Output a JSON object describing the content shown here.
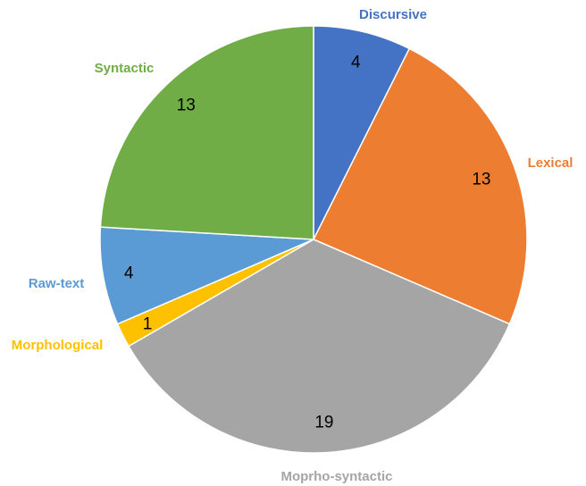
{
  "chart_data": {
    "type": "pie",
    "title": "",
    "slices": [
      {
        "label": "Discursive",
        "value": 4,
        "color": "#4472C4"
      },
      {
        "label": "Lexical",
        "value": 13,
        "color": "#ED7D31"
      },
      {
        "label": "Moprho-syntactic",
        "value": 19,
        "color": "#A5A5A5"
      },
      {
        "label": "Morphological",
        "value": 1,
        "color": "#FFC000"
      },
      {
        "label": "Raw-text",
        "value": 4,
        "color": "#5B9BD5"
      },
      {
        "label": "Syntactic",
        "value": 13,
        "color": "#70AD47"
      }
    ],
    "start_angle_deg": 0,
    "direction": "clockwise",
    "legend": "none",
    "data_labels": "inside-end"
  }
}
